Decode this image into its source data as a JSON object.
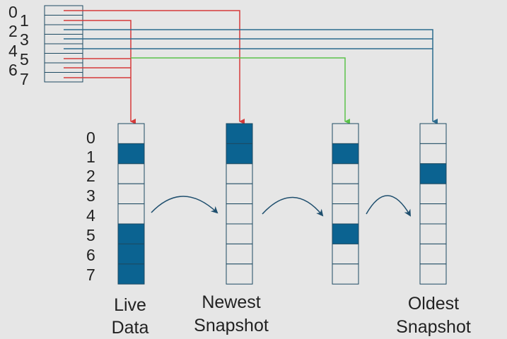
{
  "pointer_table": {
    "indices": [
      "0",
      "1",
      "2",
      "3",
      "4",
      "5",
      "6",
      "7"
    ]
  },
  "live_block_indices": [
    "0",
    "1",
    "2",
    "3",
    "4",
    "5",
    "6",
    "7"
  ],
  "columns": [
    {
      "name": "live",
      "caption_lines": [
        "Live",
        "Data"
      ],
      "filled_blocks": [
        1,
        5,
        6,
        7
      ]
    },
    {
      "name": "newest",
      "caption_lines": [
        "Newest",
        "Snapshot"
      ],
      "filled_blocks": [
        0,
        1
      ]
    },
    {
      "name": "middle",
      "caption_lines": [],
      "filled_blocks": [
        1,
        5
      ]
    },
    {
      "name": "oldest",
      "caption_lines": [
        "Oldest",
        "Snapshot"
      ],
      "filled_blocks": [
        2
      ]
    }
  ],
  "colors": {
    "background": "#e6e6e6",
    "block_fill": "#0b6391",
    "block_stroke": "#1d4a62",
    "red_pointer": "#d63a3a",
    "green_pointer": "#5cc24a",
    "blue_pointer": "#2c6b8e",
    "curve_arrow": "#1f4f6e"
  }
}
